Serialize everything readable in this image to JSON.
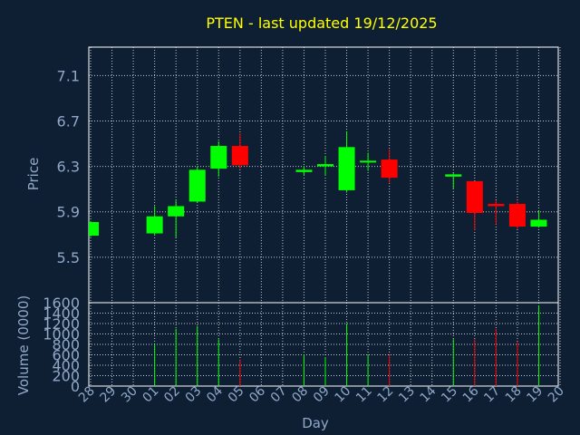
{
  "chart_data": {
    "type": "candlestick",
    "title": "PTEN - last updated 19/12/2025",
    "xlabel": "Day",
    "price_panel": {
      "ylabel": "Price",
      "ylim": [
        5.1,
        7.35
      ],
      "yticks": [
        "5.5",
        "5.9",
        "6.3",
        "6.7",
        "7.1"
      ],
      "grid": true
    },
    "volume_panel": {
      "ylabel": "Volume (0000)",
      "ylim": [
        0,
        1600
      ],
      "yticks": [
        "0",
        "200",
        "400",
        "600",
        "800",
        "1000",
        "1200",
        "1400",
        "1600"
      ],
      "grid": true
    },
    "x_labels": [
      "28",
      "29",
      "30",
      "01",
      "02",
      "03",
      "04",
      "05",
      "06",
      "07",
      "08",
      "09",
      "10",
      "11",
      "12",
      "13",
      "14",
      "15",
      "16",
      "17",
      "18",
      "19",
      "20"
    ],
    "candles": [
      {
        "day": "28",
        "open": 5.69,
        "close": 5.81,
        "high": 5.82,
        "low": 5.68,
        "volume": null,
        "direction": "up"
      },
      {
        "day": "01",
        "open": 5.71,
        "close": 5.86,
        "high": 5.95,
        "low": 5.69,
        "volume": 800,
        "direction": "up"
      },
      {
        "day": "02",
        "open": 5.86,
        "close": 5.95,
        "high": 6.0,
        "low": 5.67,
        "volume": 1100,
        "direction": "up"
      },
      {
        "day": "03",
        "open": 5.99,
        "close": 6.27,
        "high": 6.3,
        "low": 5.98,
        "volume": 1150,
        "direction": "up"
      },
      {
        "day": "04",
        "open": 6.28,
        "close": 6.48,
        "high": 6.52,
        "low": 6.21,
        "volume": 900,
        "direction": "up"
      },
      {
        "day": "05",
        "open": 6.48,
        "close": 6.31,
        "high": 6.59,
        "low": 6.28,
        "volume": 500,
        "direction": "down"
      },
      {
        "day": "08",
        "open": 6.25,
        "close": 6.27,
        "high": 6.3,
        "low": 6.22,
        "volume": 600,
        "direction": "up"
      },
      {
        "day": "09",
        "open": 6.3,
        "close": 6.32,
        "high": 6.39,
        "low": 6.22,
        "volume": 550,
        "direction": "up"
      },
      {
        "day": "10",
        "open": 6.09,
        "close": 6.47,
        "high": 6.61,
        "low": 6.07,
        "volume": 1200,
        "direction": "up"
      },
      {
        "day": "11",
        "open": 6.34,
        "close": 6.35,
        "high": 6.42,
        "low": 6.26,
        "volume": 600,
        "direction": "up"
      },
      {
        "day": "12",
        "open": 6.36,
        "close": 6.2,
        "high": 6.45,
        "low": 6.15,
        "volume": 600,
        "direction": "down"
      },
      {
        "day": "15",
        "open": 6.21,
        "close": 6.23,
        "high": 6.24,
        "low": 6.1,
        "volume": 900,
        "direction": "up"
      },
      {
        "day": "16",
        "open": 6.17,
        "close": 5.89,
        "high": 6.17,
        "low": 5.74,
        "volume": 900,
        "direction": "down"
      },
      {
        "day": "17",
        "open": 5.97,
        "close": 5.95,
        "high": 6.0,
        "low": 5.79,
        "volume": 1100,
        "direction": "down"
      },
      {
        "day": "18",
        "open": 5.97,
        "close": 5.77,
        "high": 5.99,
        "low": 5.75,
        "volume": 850,
        "direction": "down"
      },
      {
        "day": "19",
        "open": 5.77,
        "close": 5.83,
        "high": 5.91,
        "low": 5.76,
        "volume": 1550,
        "direction": "up"
      }
    ],
    "colors": {
      "background": "#0f1f33",
      "up": "#00ff00",
      "down": "#ff0000",
      "title": "#ffff00",
      "axis_text": "#8fa8c8",
      "grid": "#ffffff"
    }
  }
}
